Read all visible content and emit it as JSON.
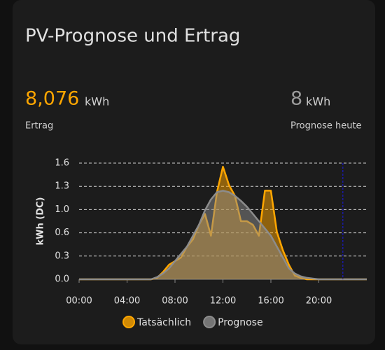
{
  "card": {
    "title": "PV-Prognose und Ertrag",
    "stats": [
      {
        "value": "8,076",
        "unit": "kWh",
        "label": "Ertrag"
      },
      {
        "value": "8",
        "unit": "kWh",
        "label": "Prognose heute"
      }
    ]
  },
  "chart_data": {
    "type": "area",
    "y_label": "kWh (DC)",
    "x": [
      0,
      0.5,
      1,
      1.5,
      2,
      2.5,
      3,
      3.5,
      4,
      4.5,
      5,
      5.5,
      6,
      6.5,
      7,
      7.5,
      8,
      8.5,
      9,
      9.5,
      10,
      10.5,
      11,
      11.5,
      12,
      12.5,
      13,
      13.5,
      14,
      14.5,
      15,
      15.5,
      16,
      16.5,
      17,
      17.5,
      18,
      18.5,
      19,
      19.5,
      20,
      20.5,
      21,
      21.5,
      22,
      22.5,
      23,
      23.5,
      24
    ],
    "series": [
      {
        "name": "Tatsächlich",
        "color": "#ffa600",
        "values": [
          0,
          0,
          0,
          0,
          0,
          0,
          0,
          0,
          0,
          0,
          0,
          0,
          0,
          0.02,
          0.1,
          0.2,
          0.25,
          0.3,
          0.45,
          0.55,
          0.75,
          0.9,
          0.6,
          1.2,
          1.55,
          1.3,
          1.15,
          0.8,
          0.8,
          0.75,
          0.6,
          1.22,
          1.22,
          0.65,
          0.4,
          0.2,
          0.05,
          0.02,
          0,
          0,
          0,
          0,
          0,
          0,
          0,
          0,
          0,
          0,
          0
        ]
      },
      {
        "name": "Prognose",
        "color": "#8c8c8c",
        "values": [
          0,
          0,
          0,
          0,
          0,
          0,
          0,
          0,
          0,
          0,
          0,
          0,
          0,
          0.03,
          0.08,
          0.15,
          0.25,
          0.35,
          0.45,
          0.6,
          0.75,
          0.95,
          1.1,
          1.2,
          1.22,
          1.2,
          1.15,
          1.08,
          1.0,
          0.9,
          0.8,
          0.7,
          0.6,
          0.45,
          0.3,
          0.15,
          0.08,
          0.04,
          0.02,
          0.01,
          0,
          0,
          0,
          0,
          0,
          0,
          0,
          0,
          0
        ]
      }
    ],
    "xlim": [
      0,
      24
    ],
    "xticks": [
      {
        "value": 0,
        "label": "00:00"
      },
      {
        "value": 4,
        "label": "04:00"
      },
      {
        "value": 8,
        "label": "08:00"
      },
      {
        "value": 12,
        "label": "12:00"
      },
      {
        "value": 16,
        "label": "16:00"
      },
      {
        "value": 20,
        "label": "20:00"
      }
    ],
    "ylim": [
      0,
      1.6
    ],
    "yticks": [
      {
        "value": 0,
        "label": "0.0"
      },
      {
        "value": 0.32,
        "label": "0.3"
      },
      {
        "value": 0.64,
        "label": "0.6"
      },
      {
        "value": 0.96,
        "label": "1.0"
      },
      {
        "value": 1.28,
        "label": "1.3"
      },
      1.6
    ],
    "now": 22,
    "now_color": "#1a1aa0",
    "grid": true,
    "legend": "bottom"
  }
}
